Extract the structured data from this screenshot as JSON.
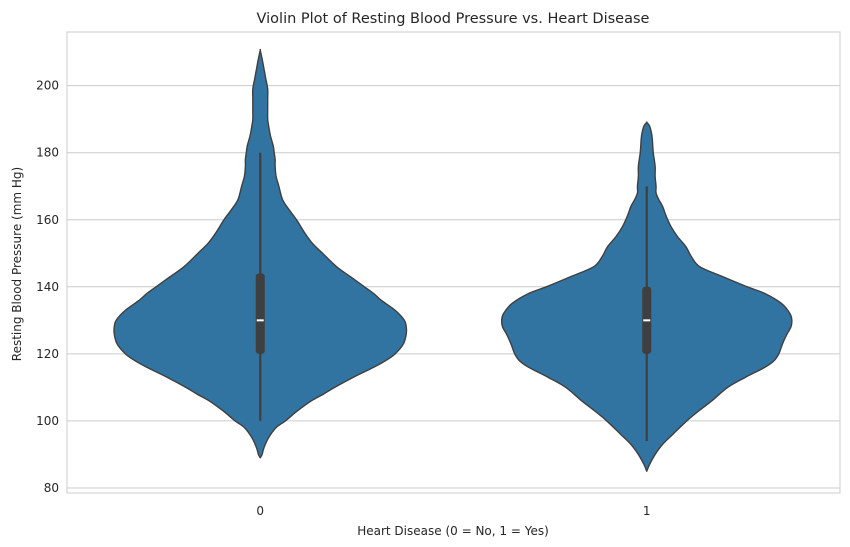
{
  "chart_data": {
    "type": "violin",
    "title": "Violin Plot of Resting Blood Pressure vs. Heart Disease",
    "xlabel": "Heart Disease (0 = No, 1 = Yes)",
    "ylabel": "Resting Blood Pressure (mm Hg)",
    "categories": [
      "0",
      "1"
    ],
    "ylim": [
      78.5,
      216
    ],
    "yticks": [
      80,
      100,
      120,
      140,
      160,
      180,
      200
    ],
    "grid": "horizontal",
    "colors": {
      "fill": "#3274a1",
      "edge": "#3f3f3f",
      "box": "#3f3f3f",
      "median": "#ffffff",
      "grid": "#cccccc",
      "spine": "#cccccc"
    },
    "violins": [
      {
        "category": "0",
        "min": 89,
        "max": 210.5,
        "whisker_low": 100,
        "whisker_high": 180,
        "q1": 120,
        "median": 130,
        "q3": 144,
        "profile": [
          [
            89,
            0.0
          ],
          [
            90,
            0.02
          ],
          [
            92,
            0.04
          ],
          [
            95,
            0.09
          ],
          [
            98,
            0.17
          ],
          [
            100,
            0.27
          ],
          [
            103,
            0.4
          ],
          [
            106,
            0.55
          ],
          [
            108,
            0.68
          ],
          [
            110,
            0.8
          ],
          [
            113,
            1.0
          ],
          [
            116,
            1.22
          ],
          [
            118,
            1.35
          ],
          [
            120,
            1.45
          ],
          [
            123,
            1.54
          ],
          [
            126,
            1.57
          ],
          [
            128,
            1.57
          ],
          [
            130,
            1.55
          ],
          [
            133,
            1.45
          ],
          [
            136,
            1.3
          ],
          [
            138,
            1.22
          ],
          [
            140,
            1.12
          ],
          [
            143,
            0.97
          ],
          [
            146,
            0.82
          ],
          [
            150,
            0.67
          ],
          [
            153,
            0.56
          ],
          [
            156,
            0.48
          ],
          [
            160,
            0.39
          ],
          [
            163,
            0.31
          ],
          [
            166,
            0.24
          ],
          [
            170,
            0.2
          ],
          [
            173,
            0.17
          ],
          [
            176,
            0.16
          ],
          [
            178,
            0.16
          ],
          [
            180,
            0.15
          ],
          [
            182,
            0.14
          ],
          [
            185,
            0.11
          ],
          [
            188,
            0.09
          ],
          [
            190,
            0.08
          ],
          [
            193,
            0.08
          ],
          [
            196,
            0.08
          ],
          [
            199,
            0.08
          ],
          [
            202,
            0.06
          ],
          [
            205,
            0.04
          ],
          [
            208,
            0.02
          ],
          [
            210.5,
            0.0
          ]
        ]
      },
      {
        "category": "1",
        "min": 85,
        "max": 189,
        "whisker_low": 94,
        "whisker_high": 170,
        "q1": 120,
        "median": 130,
        "q3": 140,
        "profile": [
          [
            85,
            0.0
          ],
          [
            87,
            0.03
          ],
          [
            90,
            0.09
          ],
          [
            93,
            0.17
          ],
          [
            96,
            0.28
          ],
          [
            100,
            0.43
          ],
          [
            103,
            0.56
          ],
          [
            106,
            0.7
          ],
          [
            110,
            0.87
          ],
          [
            113,
            1.06
          ],
          [
            116,
            1.27
          ],
          [
            118,
            1.37
          ],
          [
            120,
            1.42
          ],
          [
            123,
            1.46
          ],
          [
            126,
            1.51
          ],
          [
            128,
            1.55
          ],
          [
            130,
            1.56
          ],
          [
            132,
            1.54
          ],
          [
            135,
            1.45
          ],
          [
            138,
            1.27
          ],
          [
            140,
            1.08
          ],
          [
            143,
            0.82
          ],
          [
            146,
            0.57
          ],
          [
            149,
            0.48
          ],
          [
            152,
            0.42
          ],
          [
            155,
            0.33
          ],
          [
            158,
            0.26
          ],
          [
            161,
            0.21
          ],
          [
            164,
            0.17
          ],
          [
            166,
            0.13
          ],
          [
            168,
            0.1
          ],
          [
            170,
            0.1
          ],
          [
            173,
            0.09
          ],
          [
            176,
            0.09
          ],
          [
            180,
            0.07
          ],
          [
            184,
            0.06
          ],
          [
            186,
            0.05
          ],
          [
            188,
            0.03
          ],
          [
            189,
            0.0
          ]
        ]
      }
    ]
  }
}
